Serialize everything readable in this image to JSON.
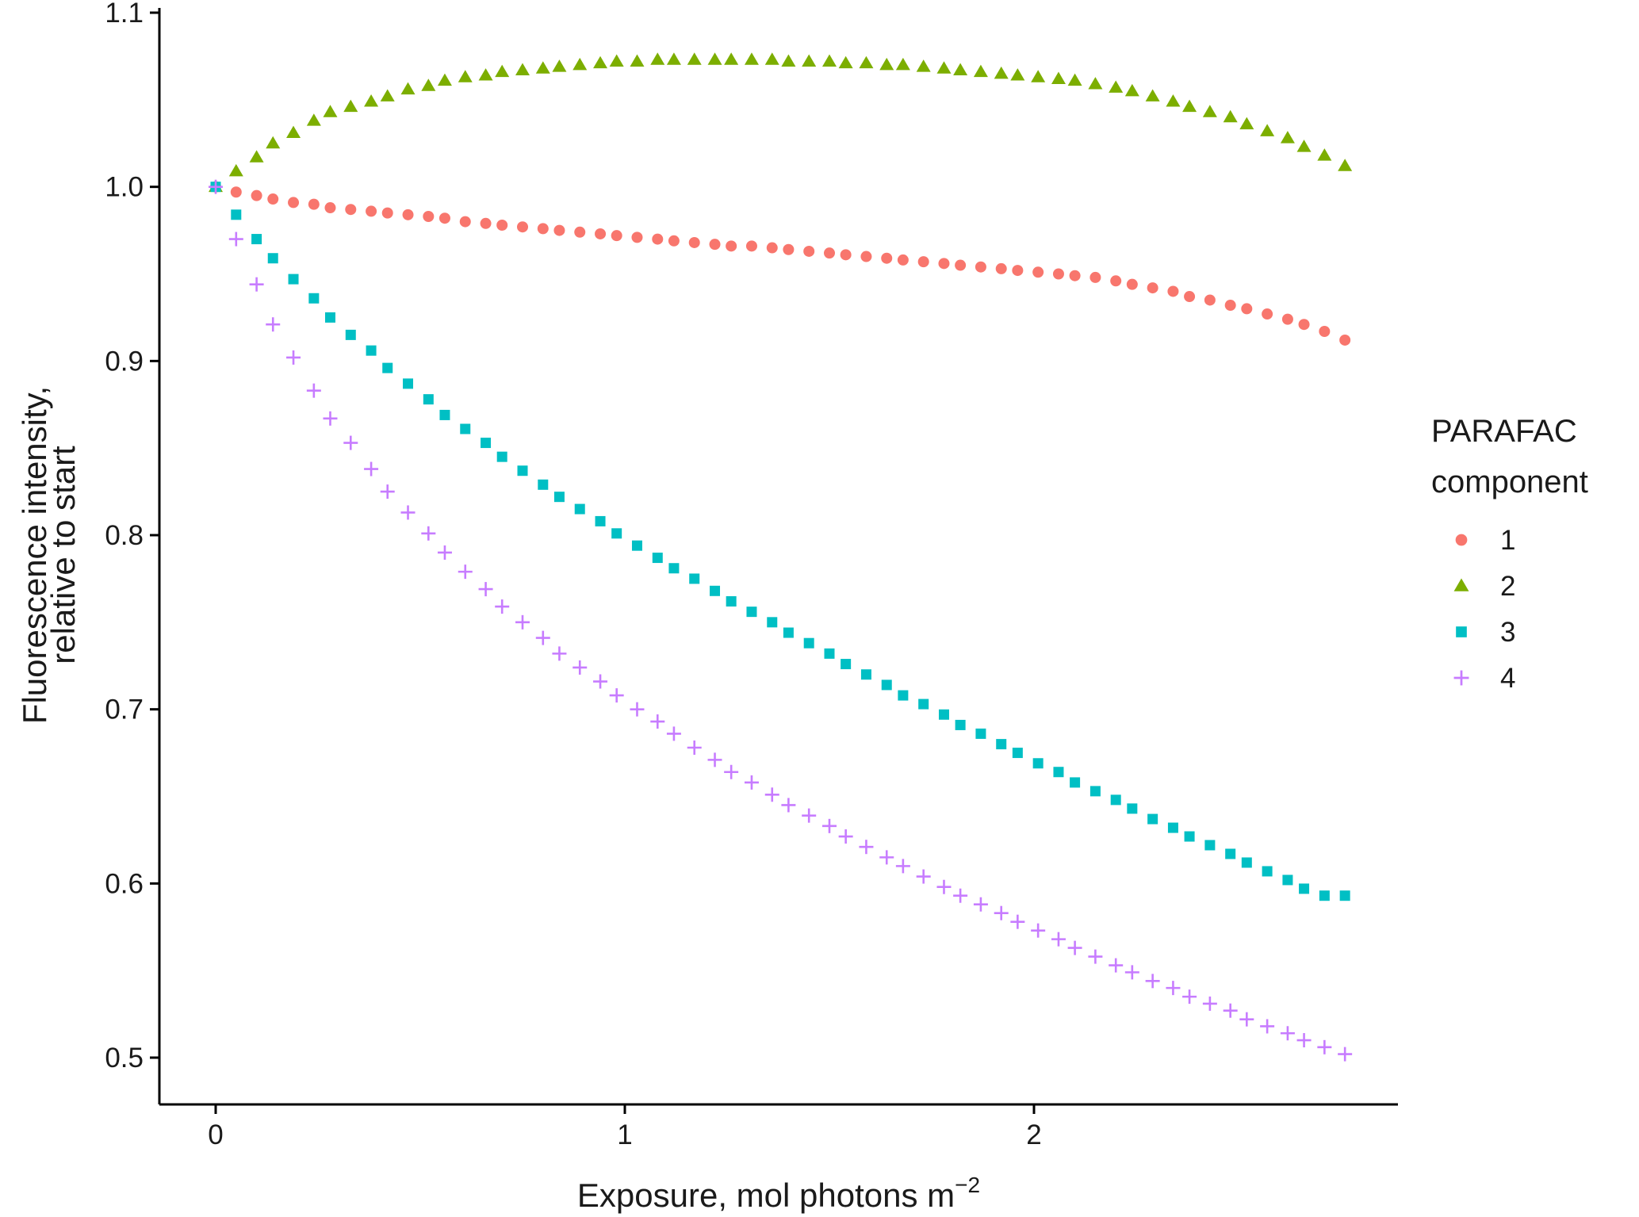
{
  "chart_data": {
    "type": "scatter",
    "title": "",
    "xlabel": "Exposure, mol photons m",
    "xlabel_superscript": "−2",
    "ylabel_lines": [
      "Fluorescence intensity,",
      "relative to start"
    ],
    "xlim": [
      -0.12,
      2.9
    ],
    "ylim": [
      0.475,
      1.1
    ],
    "x_ticks": [
      0,
      1,
      2
    ],
    "x_tick_labels": [
      "0",
      "1",
      "2"
    ],
    "y_ticks": [
      0.5,
      0.6,
      0.7,
      0.8,
      0.9,
      1.0,
      1.1
    ],
    "y_tick_labels": [
      "0.5",
      "0.6",
      "0.7",
      "0.8",
      "0.9",
      "1.0",
      "1.1"
    ],
    "grid": false,
    "legend": {
      "title_lines": [
        "PARAFAC",
        "component"
      ],
      "placement": "right"
    },
    "x": [
      0,
      0.05,
      0.1,
      0.14,
      0.19,
      0.24,
      0.28,
      0.33,
      0.38,
      0.42,
      0.47,
      0.52,
      0.56,
      0.61,
      0.66,
      0.7,
      0.75,
      0.8,
      0.84,
      0.89,
      0.94,
      0.98,
      1.03,
      1.08,
      1.12,
      1.17,
      1.22,
      1.26,
      1.31,
      1.36,
      1.4,
      1.45,
      1.5,
      1.54,
      1.59,
      1.64,
      1.68,
      1.73,
      1.78,
      1.82,
      1.87,
      1.92,
      1.96,
      2.01,
      2.06,
      2.1,
      2.15,
      2.2,
      2.24,
      2.29,
      2.34,
      2.38,
      2.43,
      2.48,
      2.52,
      2.57,
      2.62,
      2.66,
      2.71,
      2.76
    ],
    "series": [
      {
        "name": "1",
        "color": "#F8766D",
        "shape": "circle",
        "values": [
          1.0,
          0.997,
          0.995,
          0.993,
          0.991,
          0.99,
          0.988,
          0.987,
          0.986,
          0.985,
          0.984,
          0.983,
          0.982,
          0.98,
          0.979,
          0.978,
          0.977,
          0.976,
          0.975,
          0.974,
          0.973,
          0.972,
          0.971,
          0.97,
          0.969,
          0.968,
          0.967,
          0.966,
          0.966,
          0.965,
          0.964,
          0.963,
          0.962,
          0.961,
          0.96,
          0.959,
          0.958,
          0.957,
          0.956,
          0.955,
          0.954,
          0.953,
          0.952,
          0.951,
          0.95,
          0.949,
          0.948,
          0.946,
          0.944,
          0.942,
          0.94,
          0.937,
          0.935,
          0.932,
          0.93,
          0.927,
          0.924,
          0.921,
          0.917,
          0.912
        ]
      },
      {
        "name": "2",
        "color": "#7CAE00",
        "shape": "triangle",
        "values": [
          1.0,
          1.009,
          1.017,
          1.025,
          1.031,
          1.038,
          1.043,
          1.046,
          1.049,
          1.052,
          1.056,
          1.058,
          1.061,
          1.063,
          1.064,
          1.066,
          1.067,
          1.068,
          1.069,
          1.07,
          1.071,
          1.072,
          1.072,
          1.073,
          1.073,
          1.073,
          1.073,
          1.073,
          1.073,
          1.073,
          1.072,
          1.072,
          1.072,
          1.071,
          1.071,
          1.07,
          1.07,
          1.069,
          1.068,
          1.067,
          1.066,
          1.065,
          1.064,
          1.063,
          1.062,
          1.061,
          1.059,
          1.057,
          1.055,
          1.052,
          1.049,
          1.046,
          1.043,
          1.04,
          1.036,
          1.032,
          1.028,
          1.023,
          1.018,
          1.012
        ]
      },
      {
        "name": "3",
        "color": "#00BFC4",
        "shape": "square",
        "values": [
          1.0,
          0.984,
          0.97,
          0.959,
          0.947,
          0.936,
          0.925,
          0.915,
          0.906,
          0.896,
          0.887,
          0.878,
          0.869,
          0.861,
          0.853,
          0.845,
          0.837,
          0.829,
          0.822,
          0.815,
          0.808,
          0.801,
          0.794,
          0.787,
          0.781,
          0.775,
          0.768,
          0.762,
          0.756,
          0.75,
          0.744,
          0.738,
          0.732,
          0.726,
          0.72,
          0.714,
          0.708,
          0.703,
          0.697,
          0.691,
          0.686,
          0.68,
          0.675,
          0.669,
          0.664,
          0.658,
          0.653,
          0.648,
          0.643,
          0.637,
          0.632,
          0.627,
          0.622,
          0.617,
          0.612,
          0.607,
          0.602,
          0.597,
          0.593,
          0.593
        ]
      },
      {
        "name": "4",
        "color": "#C77CFF",
        "shape": "plus",
        "values": [
          1.0,
          0.97,
          0.944,
          0.921,
          0.902,
          0.883,
          0.867,
          0.853,
          0.838,
          0.825,
          0.813,
          0.801,
          0.79,
          0.779,
          0.769,
          0.759,
          0.75,
          0.741,
          0.732,
          0.724,
          0.716,
          0.708,
          0.7,
          0.693,
          0.686,
          0.678,
          0.671,
          0.664,
          0.658,
          0.651,
          0.645,
          0.639,
          0.633,
          0.627,
          0.621,
          0.615,
          0.61,
          0.604,
          0.598,
          0.593,
          0.588,
          0.583,
          0.578,
          0.573,
          0.568,
          0.563,
          0.558,
          0.553,
          0.549,
          0.544,
          0.54,
          0.535,
          0.531,
          0.527,
          0.522,
          0.518,
          0.514,
          0.51,
          0.506,
          0.502
        ]
      }
    ]
  }
}
